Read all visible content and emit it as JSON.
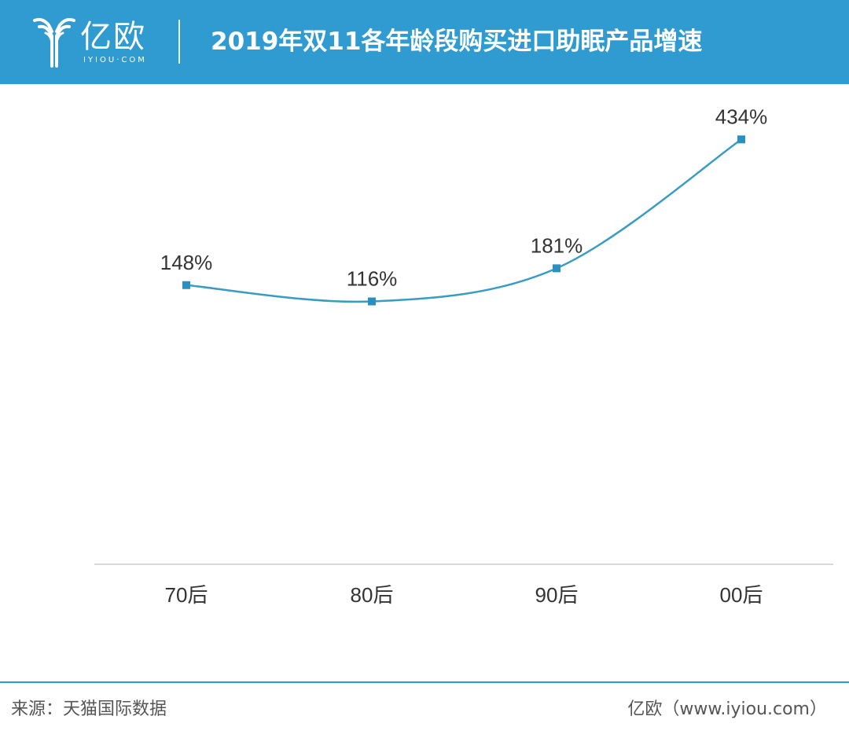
{
  "header": {
    "brand": "亿欧",
    "brand_sub": "IYIOU·COM",
    "title": "2019年双11各年龄段购买进口助眠产品增速"
  },
  "chart_data": {
    "type": "line",
    "title": "2019年双11各年龄段购买进口助眠产品增速",
    "categories": [
      "70后",
      "80后",
      "90后",
      "00后"
    ],
    "series": [
      {
        "values": [
          148,
          116,
          181,
          434
        ]
      }
    ],
    "data_labels": [
      "148%",
      "116%",
      "181%",
      "434%"
    ],
    "unit": "%",
    "ylim": [
      -400,
      450
    ],
    "smooth": true,
    "grid": false,
    "legend": "none",
    "line_color": "#3a9bc4",
    "marker_color": "#2b8fc0",
    "axis_color": "#d8d8d8"
  },
  "footer": {
    "source": "来源：天猫国际数据",
    "credit": "亿欧（www.iyiou.com）"
  },
  "colors": {
    "brand": "#2f9bd0",
    "text": "#333333"
  }
}
